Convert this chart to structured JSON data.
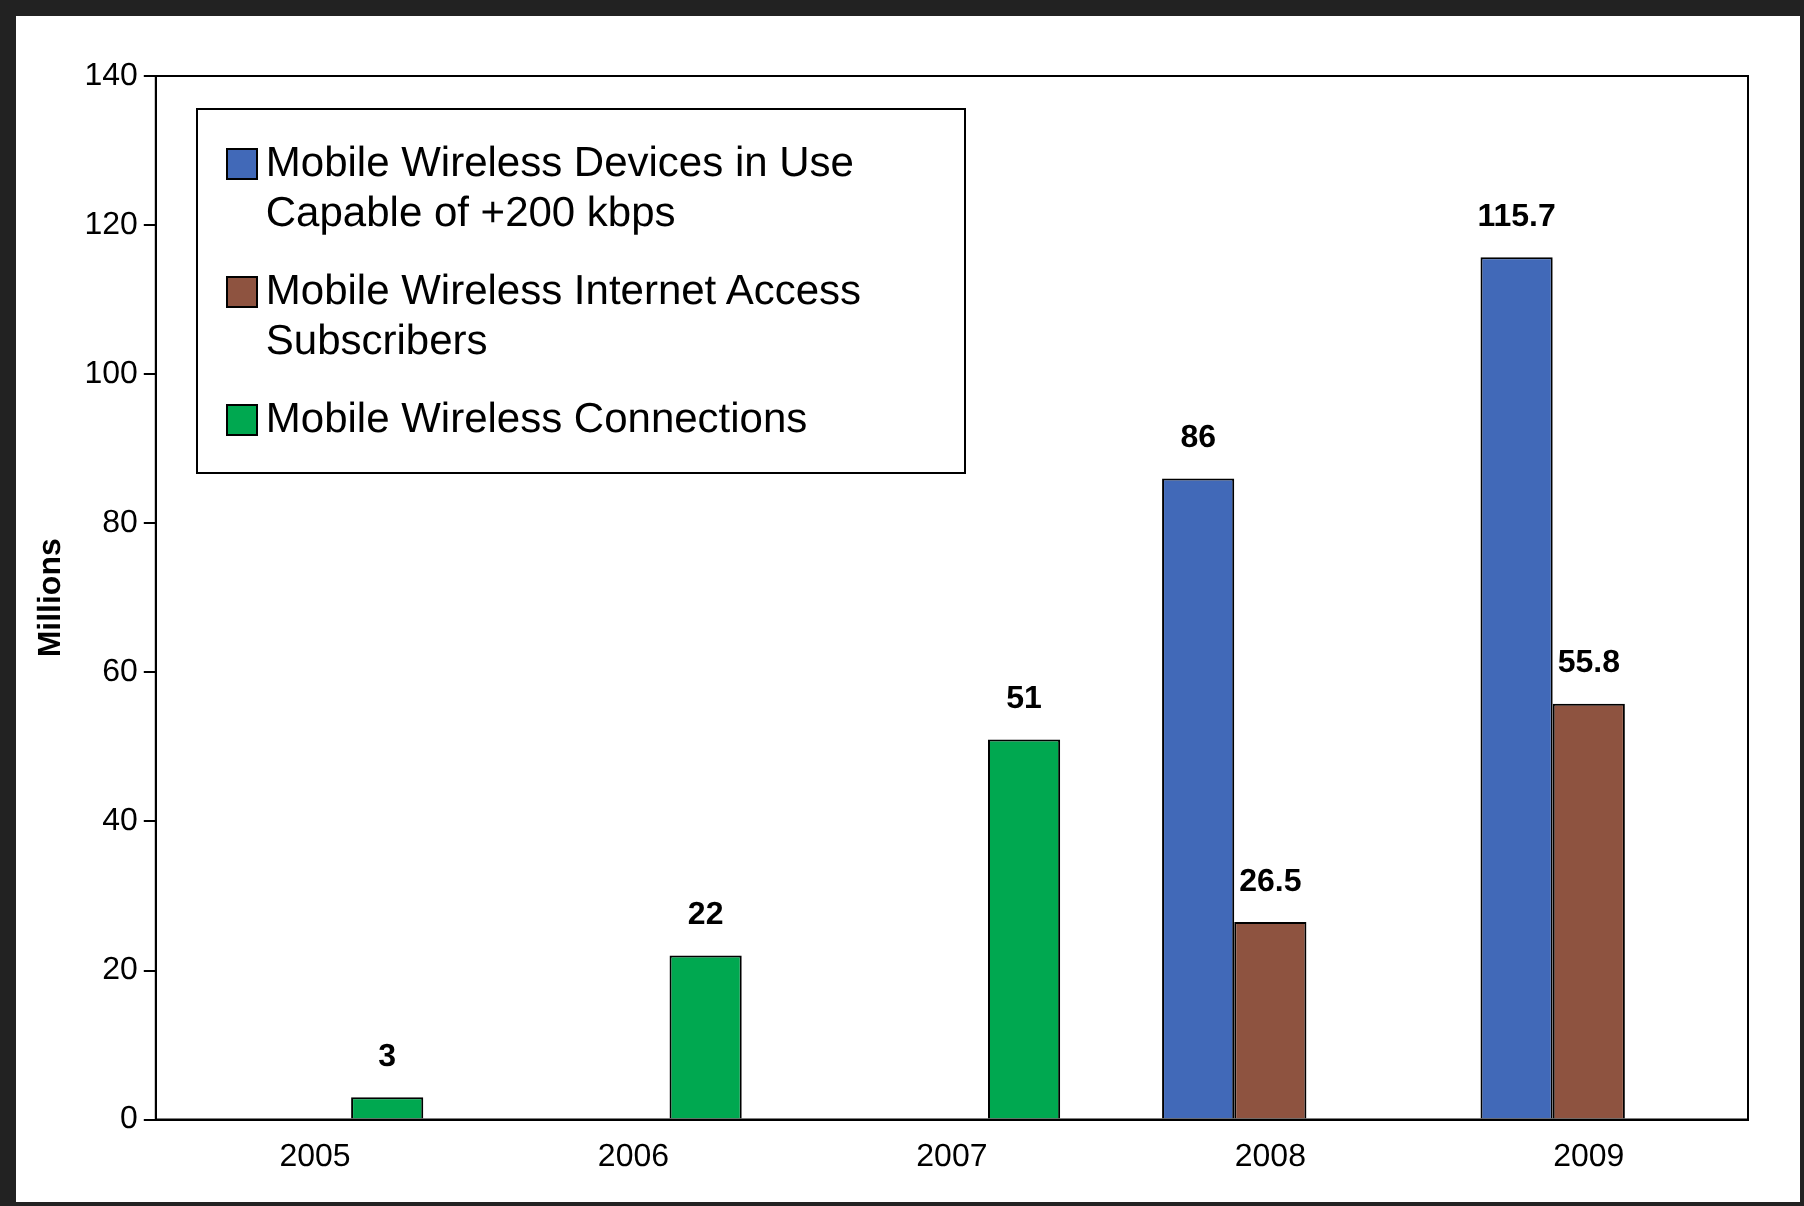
{
  "chart_data": {
    "type": "bar",
    "ylabel": "Millions",
    "categories": [
      "2005",
      "2006",
      "2007",
      "2008",
      "2009"
    ],
    "series": [
      {
        "name": "Mobile Wireless Devices in Use Capable of +200 kbps",
        "color": "#4169b8",
        "values": [
          null,
          null,
          null,
          86,
          115.7
        ]
      },
      {
        "name": "Mobile Wireless Internet Access Subscribers",
        "color": "#8e5340",
        "values": [
          null,
          null,
          null,
          26.5,
          55.8
        ]
      },
      {
        "name": "Mobile Wireless Connections",
        "color": "#00a850",
        "values": [
          3,
          22,
          51,
          null,
          null
        ]
      }
    ],
    "ylim": [
      0,
      140
    ],
    "yticks": [
      0,
      20,
      40,
      60,
      80,
      100,
      120,
      140
    ],
    "grid": false,
    "legend": "top left",
    "data_labels": true
  }
}
